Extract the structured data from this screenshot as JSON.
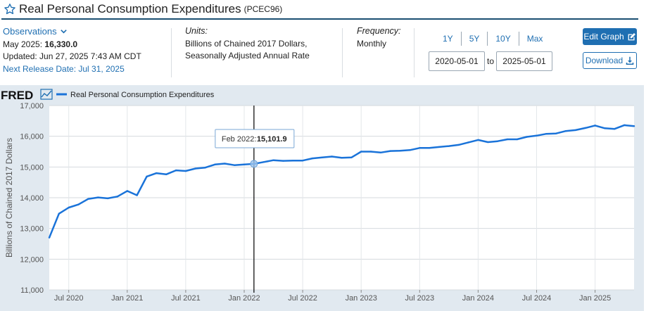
{
  "header": {
    "title": "Real Personal Consumption Expenditures",
    "series_id": "(PCEC96)"
  },
  "observations": {
    "label": "Observations",
    "period": "May 2025:",
    "value": "16,330.0",
    "updated": "Updated: Jun 27, 2025 7:43 AM CDT",
    "next_release": "Next Release Date: Jul 31, 2025"
  },
  "units": {
    "label": "Units:",
    "line1": "Billions of Chained 2017 Dollars,",
    "line2": "Seasonally Adjusted Annual Rate"
  },
  "frequency": {
    "label": "Frequency:",
    "value": "Monthly"
  },
  "range": {
    "buttons": [
      "1Y",
      "5Y",
      "10Y",
      "Max"
    ],
    "start": "2020-05-01",
    "to": "to",
    "end": "2025-05-01"
  },
  "actions": {
    "edit": "Edit Graph",
    "download": "Download"
  },
  "colors": {
    "accent": "#1f6fb2",
    "series": "#1a73d9",
    "chart_bg": "#e1e9f0"
  },
  "chart_data": {
    "type": "line",
    "brand": "FRED",
    "legend": "Real Personal Consumption Expenditures",
    "ylabel": "Billions of Chained 2017 Dollars",
    "xlabel": "",
    "ylim": [
      11000,
      17000
    ],
    "yticks": [
      11000,
      12000,
      13000,
      14000,
      15000,
      16000,
      17000
    ],
    "ytick_labels": [
      "11,000",
      "12,000",
      "13,000",
      "14,000",
      "15,000",
      "16,000",
      "17,000"
    ],
    "xticks": [
      "2020-07",
      "2021-01",
      "2021-07",
      "2022-01",
      "2022-07",
      "2023-01",
      "2023-07",
      "2024-01",
      "2024-07",
      "2025-01"
    ],
    "xtick_labels": [
      "Jul 2020",
      "Jan 2021",
      "Jul 2021",
      "Jan 2022",
      "Jul 2022",
      "Jan 2023",
      "Jul 2023",
      "Jan 2024",
      "Jul 2024",
      "Jan 2025"
    ],
    "grid": true,
    "tooltip": {
      "x": "2022-02",
      "label": "Feb 2022:",
      "value": "15,101.9"
    },
    "series": [
      {
        "name": "Real Personal Consumption Expenditures",
        "x": [
          "2020-05",
          "2020-06",
          "2020-07",
          "2020-08",
          "2020-09",
          "2020-10",
          "2020-11",
          "2020-12",
          "2021-01",
          "2021-02",
          "2021-03",
          "2021-04",
          "2021-05",
          "2021-06",
          "2021-07",
          "2021-08",
          "2021-09",
          "2021-10",
          "2021-11",
          "2021-12",
          "2022-01",
          "2022-02",
          "2022-03",
          "2022-04",
          "2022-05",
          "2022-06",
          "2022-07",
          "2022-08",
          "2022-09",
          "2022-10",
          "2022-11",
          "2022-12",
          "2023-01",
          "2023-02",
          "2023-03",
          "2023-04",
          "2023-05",
          "2023-06",
          "2023-07",
          "2023-08",
          "2023-09",
          "2023-10",
          "2023-11",
          "2023-12",
          "2024-01",
          "2024-02",
          "2024-03",
          "2024-04",
          "2024-05",
          "2024-06",
          "2024-07",
          "2024-08",
          "2024-09",
          "2024-10",
          "2024-11",
          "2024-12",
          "2025-01",
          "2025-02",
          "2025-03",
          "2025-04",
          "2025-05"
        ],
        "values": [
          12700,
          13480,
          13680,
          13780,
          13960,
          14010,
          13980,
          14040,
          14220,
          14080,
          14690,
          14800,
          14760,
          14890,
          14870,
          14950,
          14980,
          15080,
          15110,
          15060,
          15080,
          15101.9,
          15160,
          15220,
          15200,
          15210,
          15210,
          15280,
          15310,
          15340,
          15300,
          15310,
          15500,
          15500,
          15470,
          15520,
          15530,
          15550,
          15620,
          15620,
          15650,
          15680,
          15720,
          15800,
          15880,
          15810,
          15840,
          15900,
          15900,
          15980,
          16020,
          16080,
          16090,
          16170,
          16200,
          16270,
          16350,
          16260,
          16240,
          16360,
          16330
        ]
      }
    ]
  }
}
